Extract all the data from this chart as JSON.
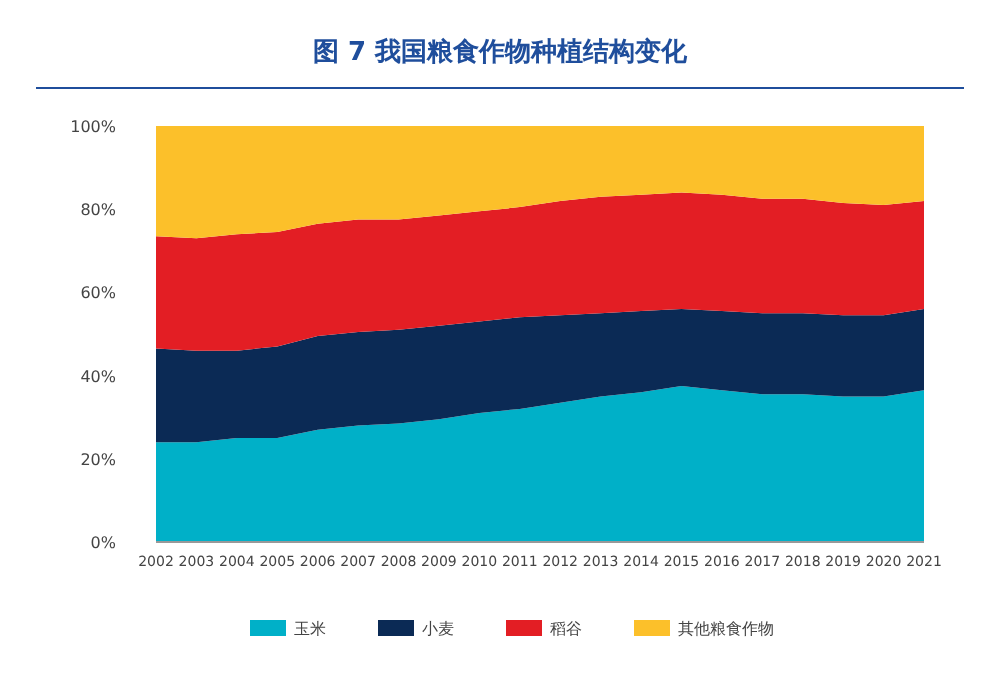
{
  "chart_data": {
    "type": "area",
    "stacked": true,
    "title": "图 7 我国粮食作物种植结构变化",
    "x": [
      2002,
      2003,
      2004,
      2005,
      2006,
      2007,
      2008,
      2009,
      2010,
      2011,
      2012,
      2013,
      2014,
      2015,
      2016,
      2017,
      2018,
      2019,
      2020,
      2021
    ],
    "xlim": [
      2002,
      2021
    ],
    "xticks": [
      2002,
      2003,
      2004,
      2005,
      2006,
      2007,
      2008,
      2009,
      2010,
      2011,
      2012,
      2013,
      2014,
      2015,
      2016,
      2017,
      2018,
      2019,
      2020,
      2021
    ],
    "ylim": [
      0,
      100
    ],
    "yticks": [
      {
        "value": 0,
        "label": "0%"
      },
      {
        "value": 20,
        "label": "20%"
      },
      {
        "value": 40,
        "label": "40%"
      },
      {
        "value": 60,
        "label": "60%"
      },
      {
        "value": 80,
        "label": "80%"
      },
      {
        "value": 100,
        "label": "100%"
      }
    ],
    "legend": "bottom",
    "grid": false,
    "series": [
      {
        "name": "玉米",
        "color": "#00b0c8",
        "values": [
          24,
          24,
          25,
          25,
          27,
          28,
          28.5,
          29.5,
          31,
          32,
          33.5,
          35,
          36,
          37.5,
          36.5,
          35.5,
          35.5,
          35,
          35,
          36.5
        ]
      },
      {
        "name": "小麦",
        "color": "#0b2a55",
        "values": [
          22.5,
          22,
          21,
          22,
          22.5,
          22.5,
          22.5,
          22.5,
          22,
          22,
          21,
          20,
          19.5,
          18.5,
          19,
          19.5,
          19.5,
          19.5,
          19.5,
          19.5
        ]
      },
      {
        "name": "稻谷",
        "color": "#e31e24",
        "values": [
          27,
          27,
          28,
          27.5,
          27,
          27,
          26.5,
          26.5,
          26.5,
          26.5,
          27.5,
          28,
          28,
          28,
          28,
          27.5,
          27.5,
          27,
          26.5,
          26
        ]
      },
      {
        "name": "其他粮食作物",
        "color": "#fcc02a",
        "values": [
          26.5,
          27,
          26,
          25.5,
          23.5,
          22.5,
          22.5,
          21.5,
          20.5,
          19.5,
          18,
          17,
          16.5,
          16,
          16.5,
          17.5,
          17.5,
          18.5,
          19,
          18
        ]
      }
    ]
  }
}
